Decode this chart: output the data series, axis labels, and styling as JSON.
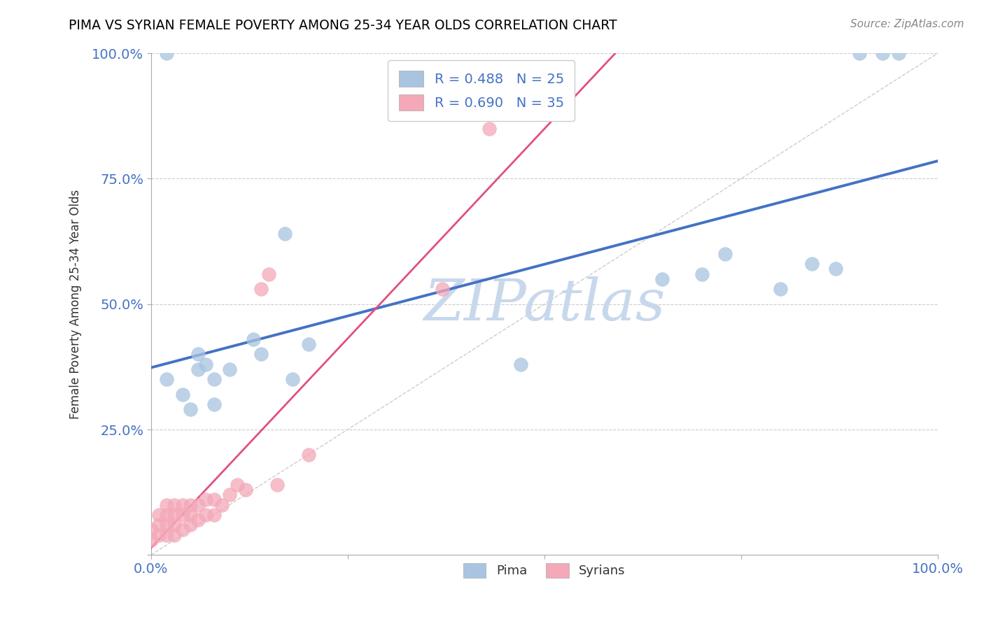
{
  "title": "PIMA VS SYRIAN FEMALE POVERTY AMONG 25-34 YEAR OLDS CORRELATION CHART",
  "source": "Source: ZipAtlas.com",
  "ylabel_label": "Female Poverty Among 25-34 Year Olds",
  "pima_R": "0.488",
  "pima_N": "25",
  "syrian_R": "0.690",
  "syrian_N": "35",
  "blue_color": "#A8C4E0",
  "pink_color": "#F4A8B8",
  "blue_line_color": "#4472C4",
  "pink_line_color": "#E05080",
  "ref_line_color": "#CCCCCC",
  "watermark_color": "#C8D8EC",
  "axis_label_color": "#4472C4",
  "legend_text_color": "#4472C4",
  "background_color": "#FFFFFF",
  "title_color": "#000000",
  "source_color": "#888888",
  "pima_x": [
    0.02,
    0.04,
    0.05,
    0.06,
    0.06,
    0.07,
    0.08,
    0.1,
    0.13,
    0.14,
    0.17,
    0.18,
    0.47,
    0.65,
    0.7,
    0.73,
    0.8,
    0.84,
    0.87,
    0.9,
    0.93,
    0.95,
    0.02,
    0.08,
    0.2
  ],
  "pima_y": [
    0.35,
    0.32,
    0.29,
    0.37,
    0.4,
    0.38,
    0.35,
    0.37,
    0.43,
    0.4,
    0.64,
    0.35,
    0.38,
    0.55,
    0.56,
    0.6,
    0.53,
    0.58,
    0.57,
    1.0,
    1.0,
    1.0,
    1.0,
    0.3,
    0.42
  ],
  "syrian_x": [
    0.0,
    0.0,
    0.01,
    0.01,
    0.01,
    0.02,
    0.02,
    0.02,
    0.02,
    0.03,
    0.03,
    0.03,
    0.03,
    0.04,
    0.04,
    0.04,
    0.05,
    0.05,
    0.05,
    0.06,
    0.06,
    0.07,
    0.07,
    0.08,
    0.08,
    0.09,
    0.1,
    0.11,
    0.12,
    0.14,
    0.15,
    0.16,
    0.2,
    0.37,
    0.43
  ],
  "syrian_y": [
    0.03,
    0.05,
    0.04,
    0.06,
    0.08,
    0.04,
    0.06,
    0.08,
    0.1,
    0.04,
    0.06,
    0.08,
    0.1,
    0.05,
    0.08,
    0.1,
    0.06,
    0.08,
    0.1,
    0.07,
    0.1,
    0.08,
    0.11,
    0.08,
    0.11,
    0.1,
    0.12,
    0.14,
    0.13,
    0.53,
    0.56,
    0.14,
    0.2,
    0.53,
    0.85
  ],
  "xlim": [
    0.0,
    1.0
  ],
  "ylim": [
    0.0,
    1.0
  ]
}
